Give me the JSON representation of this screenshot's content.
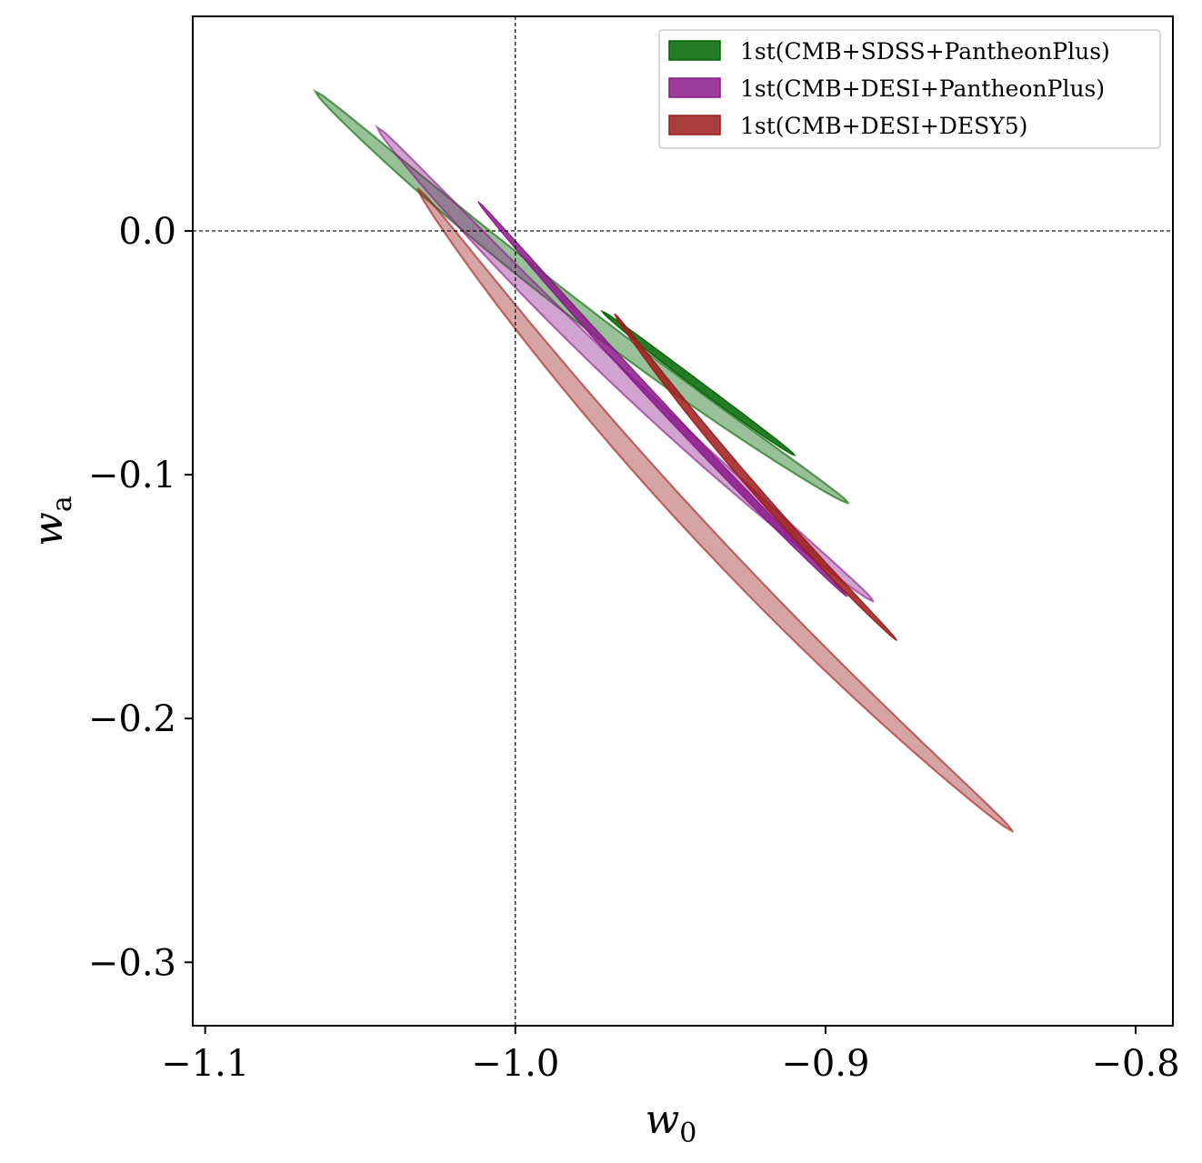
{
  "chart_data": {
    "type": "contour",
    "xlabel": "w",
    "xlabel_sub": "0",
    "ylabel": "w",
    "ylabel_sub": "a",
    "xlim": [
      -1.104,
      -0.788
    ],
    "ylim": [
      -0.326,
      0.088
    ],
    "xticks": [
      {
        "value": -1.1,
        "label": "−1.1"
      },
      {
        "value": -1.0,
        "label": "−1.0"
      },
      {
        "value": -0.9,
        "label": "−0.9"
      },
      {
        "value": -0.8,
        "label": "−0.8"
      }
    ],
    "yticks": [
      {
        "value": 0.0,
        "label": "0.0"
      },
      {
        "value": -0.1,
        "label": "−0.1"
      },
      {
        "value": -0.2,
        "label": "−0.2"
      },
      {
        "value": -0.3,
        "label": "−0.3"
      }
    ],
    "reference_lines": {
      "x": -1.0,
      "y": 0.0
    },
    "legend_position": "top-right",
    "grid": false,
    "series": [
      {
        "name": "1st(CMB+SDSS+PantheonPlus)",
        "color": "#006400",
        "outer": {
          "center": [
            -0.9785,
            -0.0273
          ],
          "end1": [
            -1.0645,
            0.0572
          ],
          "end2": [
            -0.8925,
            -0.1118
          ],
          "halfwidth": 0.0033,
          "bend": 0.005
        },
        "inner": {
          "center": [
            -0.941,
            -0.0625
          ],
          "end1": [
            -0.972,
            -0.033
          ],
          "end2": [
            -0.91,
            -0.092
          ],
          "halfwidth": 0.0014,
          "bend": 0.0005
        }
      },
      {
        "name": "1st(CMB+DESI+PantheonPlus)",
        "color": "#8B1A89",
        "outer": {
          "center": [
            -0.9645,
            -0.0548
          ],
          "end1": [
            -1.0445,
            0.0425
          ],
          "end2": [
            -0.8845,
            -0.152
          ],
          "halfwidth": 0.0033,
          "bend": 0.005
        },
        "inner": {
          "center": [
            -0.9525,
            -0.069
          ],
          "end1": [
            -1.012,
            0.012
          ],
          "end2": [
            -0.893,
            -0.15
          ],
          "halfwidth": 0.0014,
          "bend": 0.002
        }
      },
      {
        "name": "1st(CMB+DESI+DESY5)",
        "color": "#9B1B1B",
        "outer": {
          "center": [
            -0.9355,
            -0.1145
          ],
          "end1": [
            -1.0315,
            0.03
          ],
          "end2": [
            -0.8395,
            -0.234
          ],
          "halfwidth": 0.0034,
          "bend": 0.009
        },
        "inner": {
          "center": [
            -0.9225,
            -0.101
          ],
          "end1": [
            -0.968,
            -0.034
          ],
          "end2": [
            -0.877,
            -0.168
          ],
          "halfwidth": 0.0014,
          "bend": 0.003
        }
      }
    ]
  }
}
